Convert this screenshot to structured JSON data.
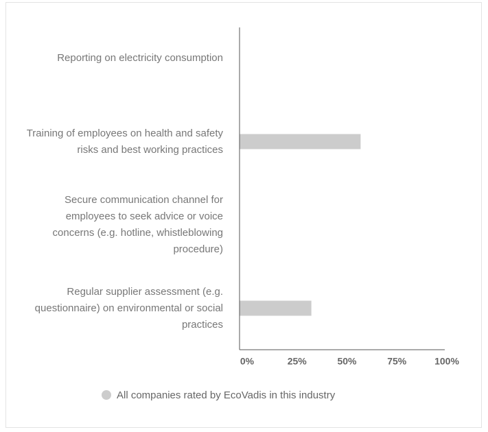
{
  "chart_data": {
    "type": "bar",
    "orientation": "horizontal",
    "categories": [
      "Reporting on electricity consumption",
      "Training of employees on health and safety risks and best working practices",
      "Secure communication channel for employees to seek advice or voice concerns (e.g. hotline, whistleblowing procedure)",
      "Regular supplier assessment (e.g. questionnaire) on environmental or social practices"
    ],
    "series": [
      {
        "name": "All companies rated by EcoVadis in this industry",
        "color": "#cccccc",
        "values": [
          0,
          59,
          0,
          35
        ]
      }
    ],
    "xlim": [
      0,
      100
    ],
    "xticks": [
      {
        "value": 0,
        "label": "0%"
      },
      {
        "value": 25,
        "label": "25%"
      },
      {
        "value": 50,
        "label": "50%"
      },
      {
        "value": 75,
        "label": "75%"
      },
      {
        "value": 100,
        "label": "100%"
      }
    ],
    "legend": "bottom"
  }
}
